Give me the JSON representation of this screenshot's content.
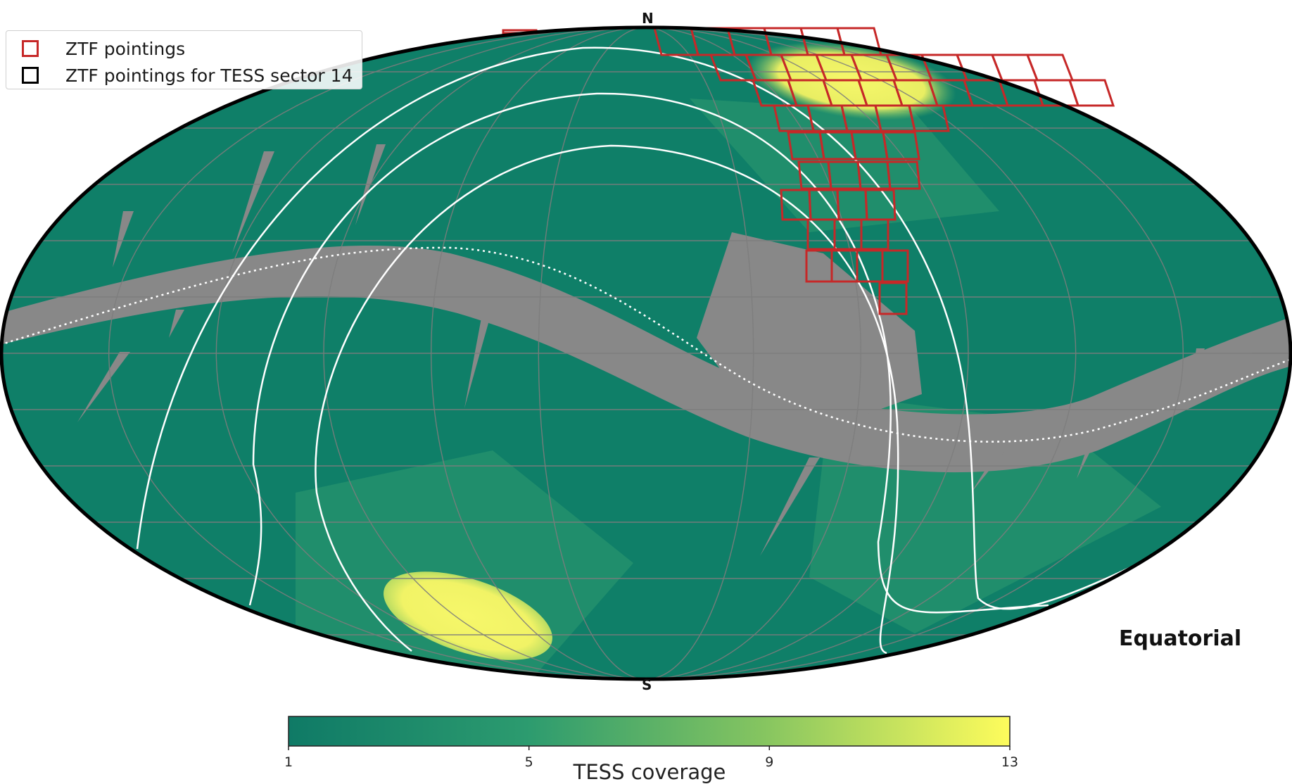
{
  "legend": {
    "items": [
      {
        "label": "ZTF pointings",
        "color": "#c62828"
      },
      {
        "label": "ZTF pointings for TESS sector 14",
        "color": "#000000"
      }
    ]
  },
  "map": {
    "north_label": "N",
    "south_label": "S",
    "projection_label": "Equatorial",
    "colors": {
      "background_coverage": "#0f7f68",
      "mid_coverage": "#2c9a6f",
      "high_coverage": "#f4f566",
      "no_coverage": "#888888",
      "grid": "#7d7d7d",
      "ztf_pointings": "#c62828",
      "overlay_lines": "#ffffff"
    }
  },
  "colorbar": {
    "title": "TESS coverage",
    "range": [
      1,
      13
    ],
    "ticks": [
      "1",
      "5",
      "9",
      "13"
    ],
    "colors": [
      "#0f7a66",
      "#2c9b6f",
      "#86c560",
      "#fefc5c"
    ]
  }
}
